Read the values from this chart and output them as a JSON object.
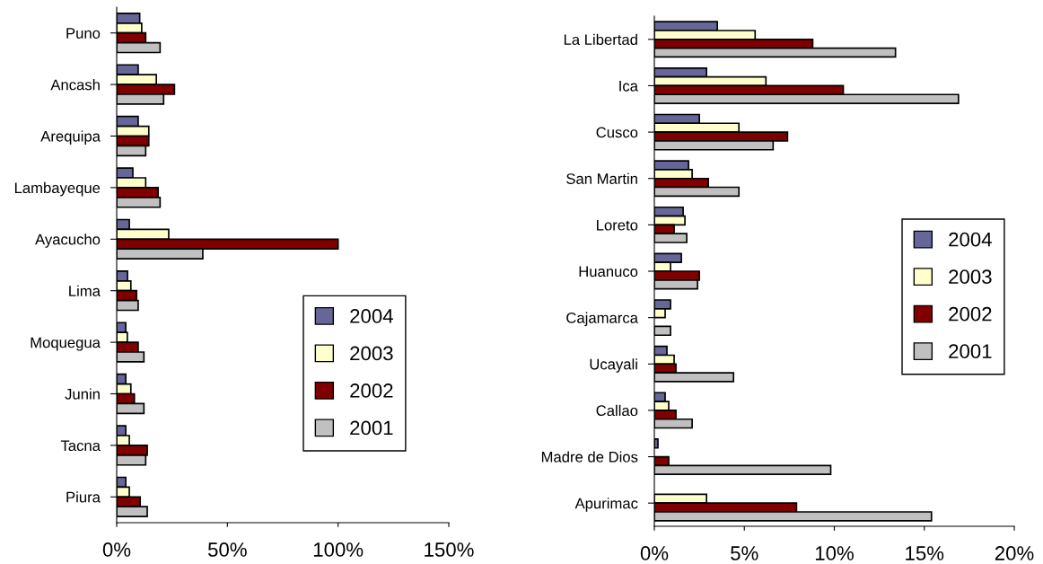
{
  "chart_data": [
    {
      "type": "bar",
      "orientation": "horizontal",
      "categories": [
        "Puno",
        "Ancash",
        "Arequipa",
        "Lambayeque",
        "Ayacucho",
        "Lima",
        "Moquegua",
        "Junin",
        "Tacna",
        "Piura"
      ],
      "series": [
        {
          "name": "2004",
          "color": "#666699",
          "values": [
            10.4,
            9.7,
            9.7,
            7.3,
            5.7,
            4.9,
            4.1,
            4.1,
            4.1,
            4.1
          ]
        },
        {
          "name": "2003",
          "color": "#ffffcc",
          "values": [
            11.3,
            17.9,
            14.5,
            13.1,
            23.5,
            6.4,
            4.8,
            6.4,
            5.7,
            5.7
          ]
        },
        {
          "name": "2002",
          "color": "#800000",
          "values": [
            13.1,
            26.1,
            14.5,
            18.7,
            100,
            9.0,
            9.7,
            8.0,
            13.8,
            10.6
          ]
        },
        {
          "name": "2001",
          "color": "#c0c0c0",
          "values": [
            19.6,
            21.2,
            13.1,
            19.6,
            38.9,
            9.7,
            12.3,
            12.3,
            13.1,
            13.8
          ]
        }
      ],
      "xlim": [
        0,
        150
      ],
      "xticks": [
        {
          "value": 0,
          "label": "0%"
        },
        {
          "value": 50,
          "label": "50%"
        },
        {
          "value": 100,
          "label": "100%"
        },
        {
          "value": 150,
          "label": "150%"
        }
      ],
      "grid": false,
      "legend": "bottom right"
    },
    {
      "type": "bar",
      "orientation": "horizontal",
      "categories": [
        "La Libertad",
        "Ica",
        "Cusco",
        "San Martin",
        "Loreto",
        "Huanuco",
        "Cajamarca",
        "Ucayali",
        "Callao",
        "Madre de Dios",
        "Apurimac"
      ],
      "series": [
        {
          "name": "2004",
          "color": "#666699",
          "values": [
            3.5,
            2.9,
            2.5,
            1.9,
            1.6,
            1.5,
            0.9,
            0.7,
            0.6,
            0.2,
            null
          ]
        },
        {
          "name": "2003",
          "color": "#ffffcc",
          "values": [
            5.6,
            6.2,
            4.7,
            2.1,
            1.7,
            0.9,
            0.6,
            1.1,
            0.8,
            null,
            2.9
          ]
        },
        {
          "name": "2002",
          "color": "#800000",
          "values": [
            8.8,
            10.5,
            7.4,
            3.0,
            1.1,
            2.5,
            null,
            1.2,
            1.2,
            0.8,
            7.9
          ]
        },
        {
          "name": "2001",
          "color": "#c0c0c0",
          "values": [
            13.4,
            16.9,
            6.6,
            4.7,
            1.8,
            2.4,
            0.9,
            4.4,
            2.1,
            9.8,
            15.4
          ]
        }
      ],
      "xlim": [
        0,
        20
      ],
      "xticks": [
        {
          "value": 0,
          "label": "0%"
        },
        {
          "value": 5,
          "label": "5%"
        },
        {
          "value": 10,
          "label": "10%"
        },
        {
          "value": 15,
          "label": "15%"
        },
        {
          "value": 20,
          "label": "20%"
        }
      ],
      "grid": false,
      "legend": "right"
    }
  ]
}
